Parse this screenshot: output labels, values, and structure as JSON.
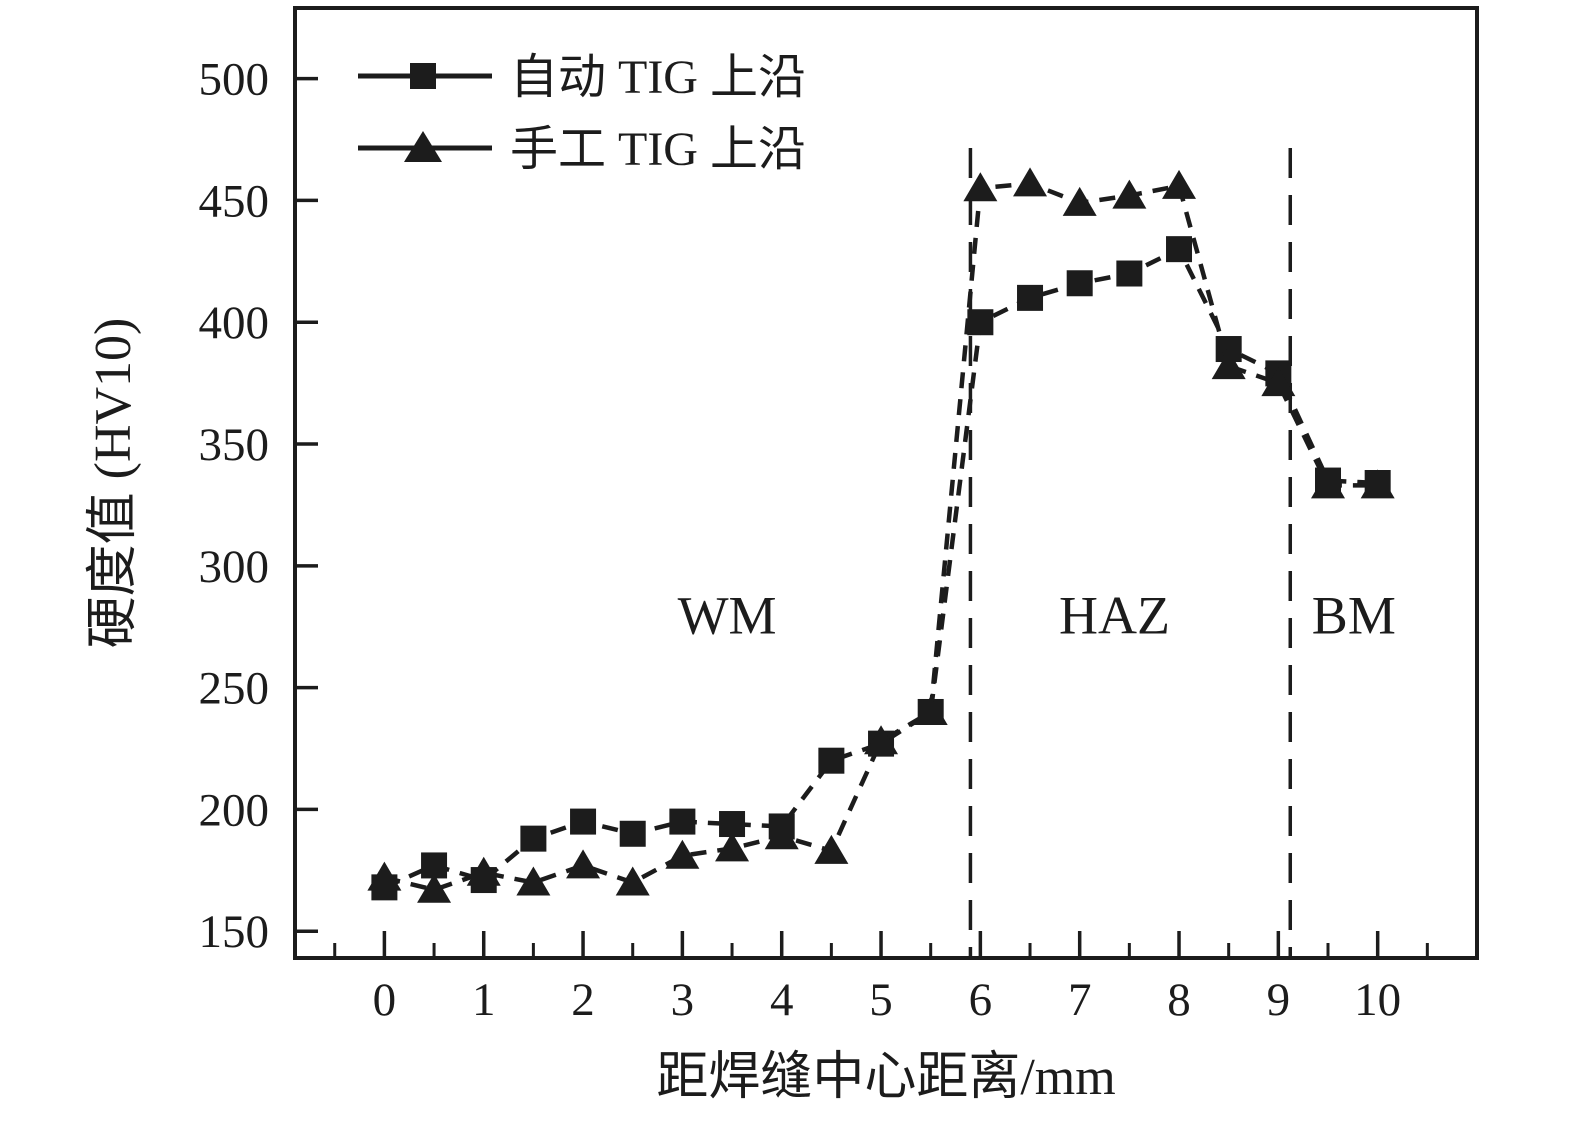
{
  "colors": {
    "ink": "#1c1c1c",
    "background": "#ffffff"
  },
  "chart_data": {
    "type": "line",
    "title": "",
    "xlabel": "距焊缝中心距离/mm",
    "ylabel": "硬度值 (HV10)",
    "xlim": [
      -0.9,
      11.0
    ],
    "ylim": [
      139,
      529
    ],
    "grid": false,
    "legend_position": "top-left",
    "x_ticks": [
      0,
      1,
      2,
      3,
      4,
      5,
      6,
      7,
      8,
      9,
      10
    ],
    "x_minor_step": 0.5,
    "y_ticks": [
      150,
      200,
      250,
      300,
      350,
      400,
      450,
      500
    ],
    "x": [
      0,
      0.5,
      1,
      1.5,
      2,
      2.5,
      3,
      3.5,
      4,
      4.5,
      5,
      5.5,
      6,
      6.5,
      7,
      7.5,
      8,
      8.5,
      9,
      9.5,
      10
    ],
    "series": [
      {
        "name": "自动 TIG 上沿",
        "marker": "square",
        "values": [
          168,
          177,
          171,
          188,
          195,
          190,
          195,
          194,
          193,
          220,
          227,
          240,
          400,
          410,
          416,
          420,
          430,
          389,
          379,
          335,
          334
        ]
      },
      {
        "name": "手工 TIG 上沿",
        "marker": "triangle",
        "values": [
          172,
          167,
          174,
          170,
          177,
          170,
          181,
          184,
          189,
          183,
          228,
          240,
          455,
          457,
          449,
          452,
          456,
          382,
          375,
          333,
          333
        ]
      }
    ],
    "zone_dividers": [
      5.9,
      9.12
    ],
    "zone_labels": [
      {
        "text": "WM",
        "x": 3.45,
        "y": 280
      },
      {
        "text": "HAZ",
        "x": 7.35,
        "y": 280
      },
      {
        "text": "BM",
        "x": 9.76,
        "y": 280
      }
    ]
  }
}
